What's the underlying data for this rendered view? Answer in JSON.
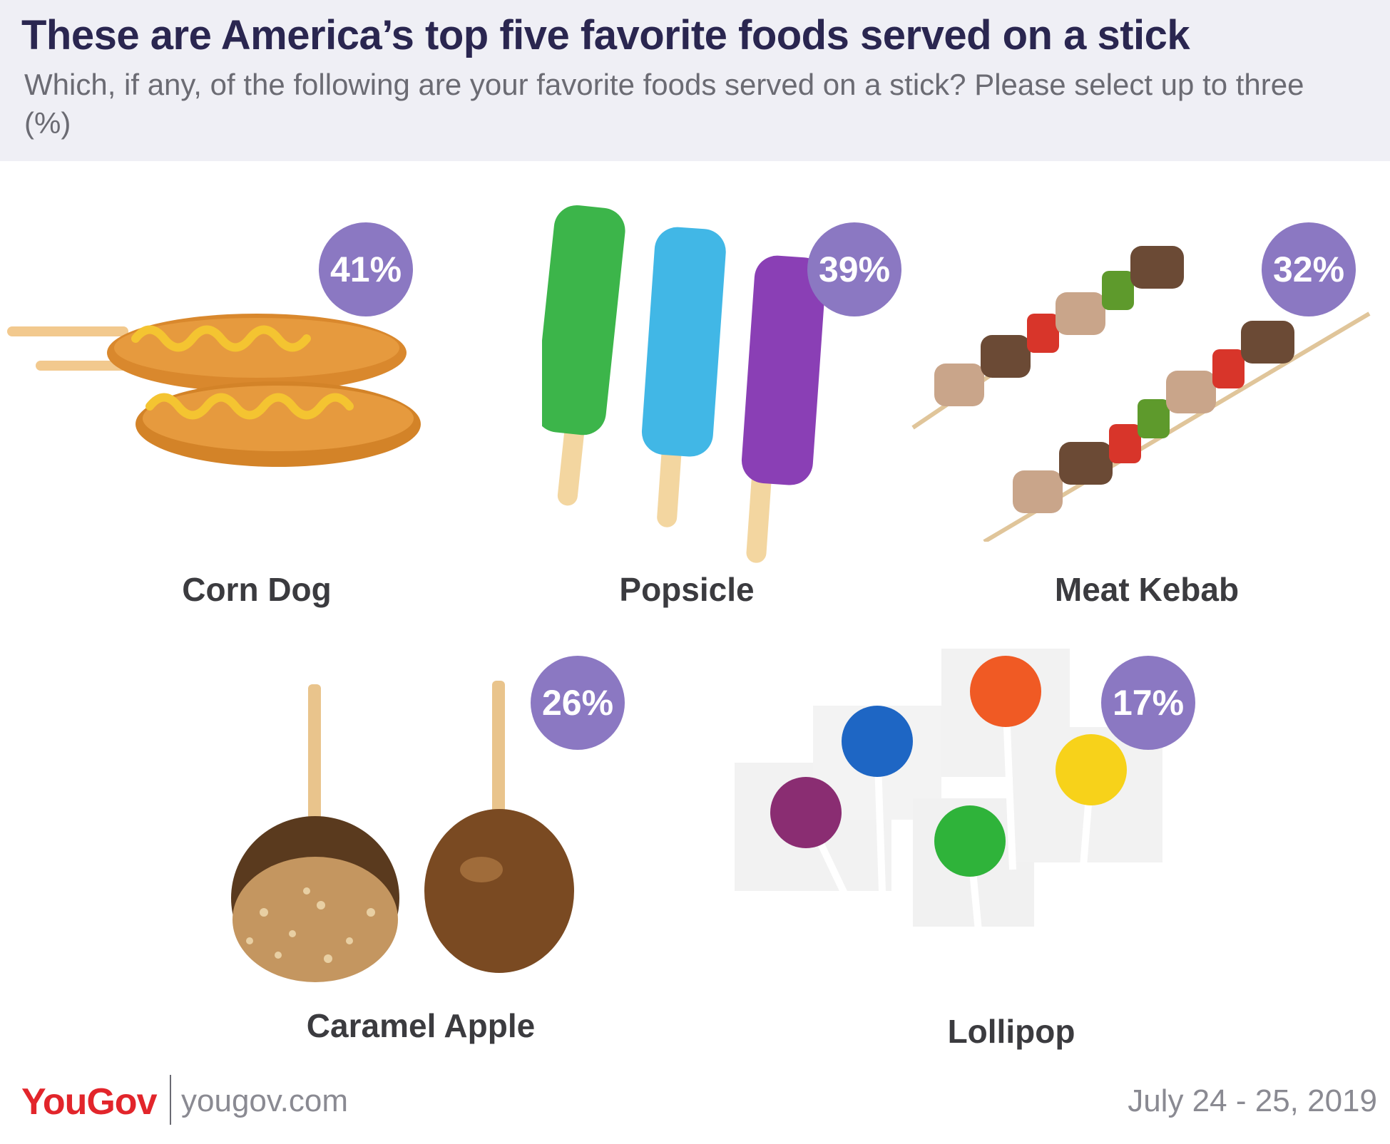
{
  "header": {
    "title": "These are America’s top five favorite foods served on a stick",
    "subtitle": "Which, if any, of the following are your favorite foods served on a stick? Please select up to three (%)"
  },
  "chart_data": {
    "type": "bar",
    "title": "These are America’s top five favorite foods served on a stick",
    "subtitle": "Which, if any, of the following are your favorite foods served on a stick? Please select up to three (%)",
    "unit": "%",
    "categories": [
      "Corn Dog",
      "Popsicle",
      "Meat Kebab",
      "Caramel Apple",
      "Lollipop"
    ],
    "values": [
      41,
      39,
      32,
      26,
      17
    ],
    "value_labels": [
      "41%",
      "39%",
      "32%",
      "26%",
      "17%"
    ],
    "badge_color": "#8b78c2"
  },
  "footer": {
    "logo": "YouGov",
    "site": "yougov.com",
    "dates": "July 24 - 25, 2019"
  },
  "colors": {
    "title": "#2a2650",
    "header_bg": "#efeff5",
    "badge": "#8b78c2",
    "logo": "#e2252b"
  }
}
